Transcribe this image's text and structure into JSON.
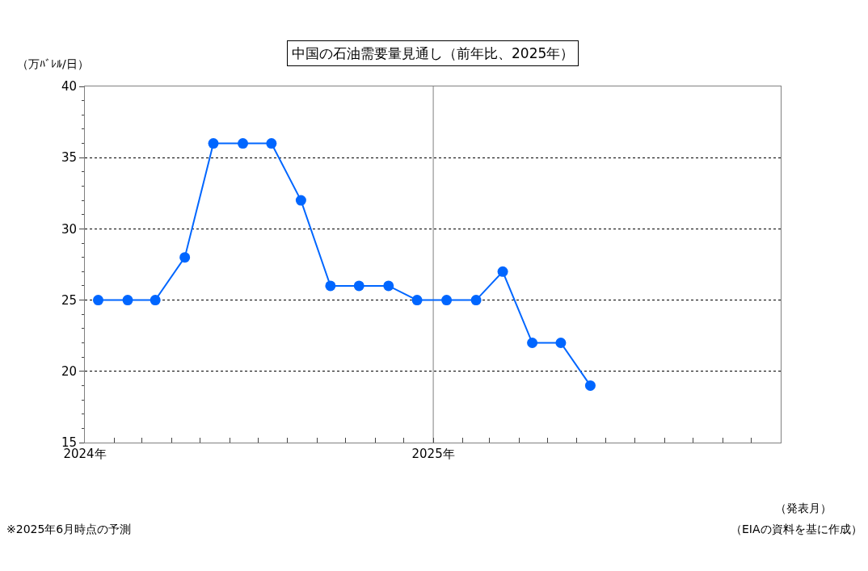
{
  "chart_data": {
    "type": "line",
    "title": "中国の石油需要量見通し（前年比、2025年）",
    "ylabel": "（万ﾊﾞﾚﾙ/日）",
    "xlabel": "（発表月）",
    "x": [
      "2024-01-15",
      "2024-02-15",
      "2024-03-15",
      "2024-04-15",
      "2024-05-15",
      "2024-06-15",
      "2024-07-15",
      "2024-08-15",
      "2024-09-15",
      "2024-10-15",
      "2024-11-15",
      "2024-12-15",
      "2025-01-15",
      "2025-02-15",
      "2025-03-15",
      "2025-04-15",
      "2025-05-15",
      "2025-06-15"
    ],
    "series": [
      {
        "color": "#0066ff",
        "values": [
          25,
          25,
          25,
          28,
          36,
          36,
          36,
          32,
          26,
          26,
          26,
          25,
          25,
          25,
          27,
          22,
          22,
          19
        ]
      }
    ],
    "xlim": [
      "2024-01-01",
      "2026-01-01"
    ],
    "xticks": [
      {
        "value": "2024-01-01",
        "label": "2024年"
      },
      {
        "value": "2024-02-01",
        "label": null
      },
      {
        "value": "2024-03-01",
        "label": null
      },
      {
        "value": "2024-04-01",
        "label": null
      },
      {
        "value": "2024-05-01",
        "label": null
      },
      {
        "value": "2024-06-01",
        "label": null
      },
      {
        "value": "2024-07-01",
        "label": null
      },
      {
        "value": "2024-08-01",
        "label": null
      },
      {
        "value": "2024-09-01",
        "label": null
      },
      {
        "value": "2024-10-01",
        "label": null
      },
      {
        "value": "2024-11-01",
        "label": null
      },
      {
        "value": "2024-12-01",
        "label": null
      },
      {
        "value": "2025-01-01",
        "label": "2025年"
      },
      {
        "value": "2025-02-01",
        "label": null
      },
      {
        "value": "2025-03-01",
        "label": null
      },
      {
        "value": "2025-04-01",
        "label": null
      },
      {
        "value": "2025-05-01",
        "label": null
      },
      {
        "value": "2025-06-01",
        "label": null
      },
      {
        "value": "2025-07-01",
        "label": null
      },
      {
        "value": "2025-08-01",
        "label": null
      },
      {
        "value": "2025-09-01",
        "label": null
      },
      {
        "value": "2025-10-01",
        "label": null
      },
      {
        "value": "2025-11-01",
        "label": null
      },
      {
        "value": "2025-12-01",
        "label": null
      },
      {
        "value": "2026-01-01",
        "label": null
      }
    ],
    "ylim": [
      15,
      40
    ],
    "yticks": [
      15,
      20,
      25,
      30,
      35,
      40
    ],
    "ref_lines": [
      {
        "axis": "x",
        "value": "2025-01-01",
        "color": "#808080",
        "line_style": "solid"
      }
    ],
    "grid": "y",
    "marker": "circle",
    "line_style": "solid",
    "annotations": [
      "※2025年6月時点の予測",
      "（EIAの資料を基に作成）"
    ]
  }
}
